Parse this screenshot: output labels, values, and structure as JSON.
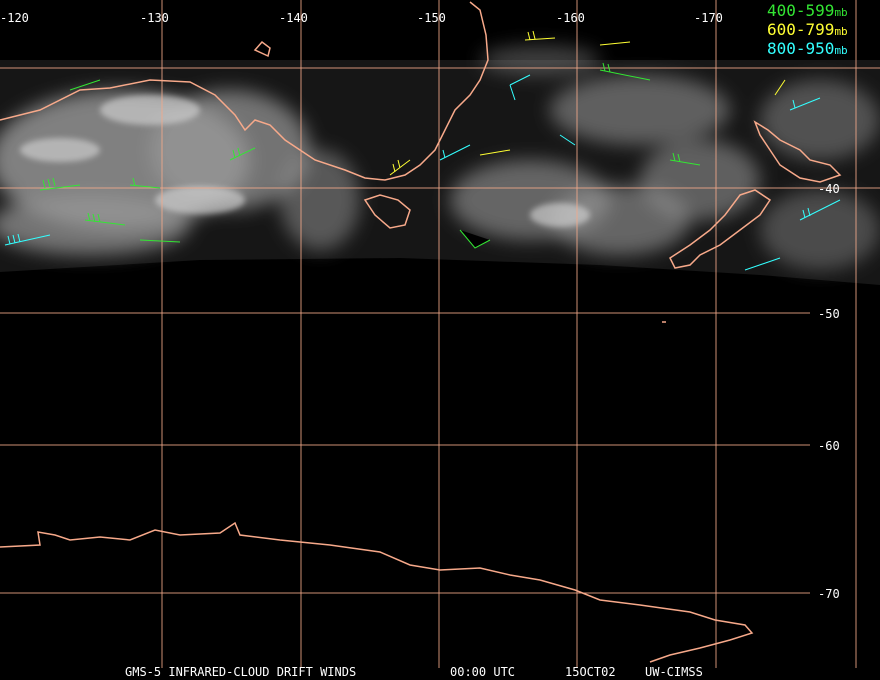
{
  "map": {
    "lon_labels": [
      "-120",
      "-130",
      "-140",
      "-150",
      "-160",
      "-170"
    ],
    "lat_labels": [
      "-40",
      "-50",
      "-60",
      "-70"
    ],
    "legend": [
      {
        "range": "400-599",
        "unit": "mb",
        "color": "#33e633"
      },
      {
        "range": "600-799",
        "unit": "mb",
        "color": "#ffff33"
      },
      {
        "range": "800-950",
        "unit": "mb",
        "color": "#33ffff"
      }
    ],
    "footer": {
      "product": "GMS-5 INFRARED-CLOUD DRIFT WINDS",
      "time": "00:00 UTC",
      "date": "15OCT02",
      "source": "UW-CIMSS"
    }
  }
}
